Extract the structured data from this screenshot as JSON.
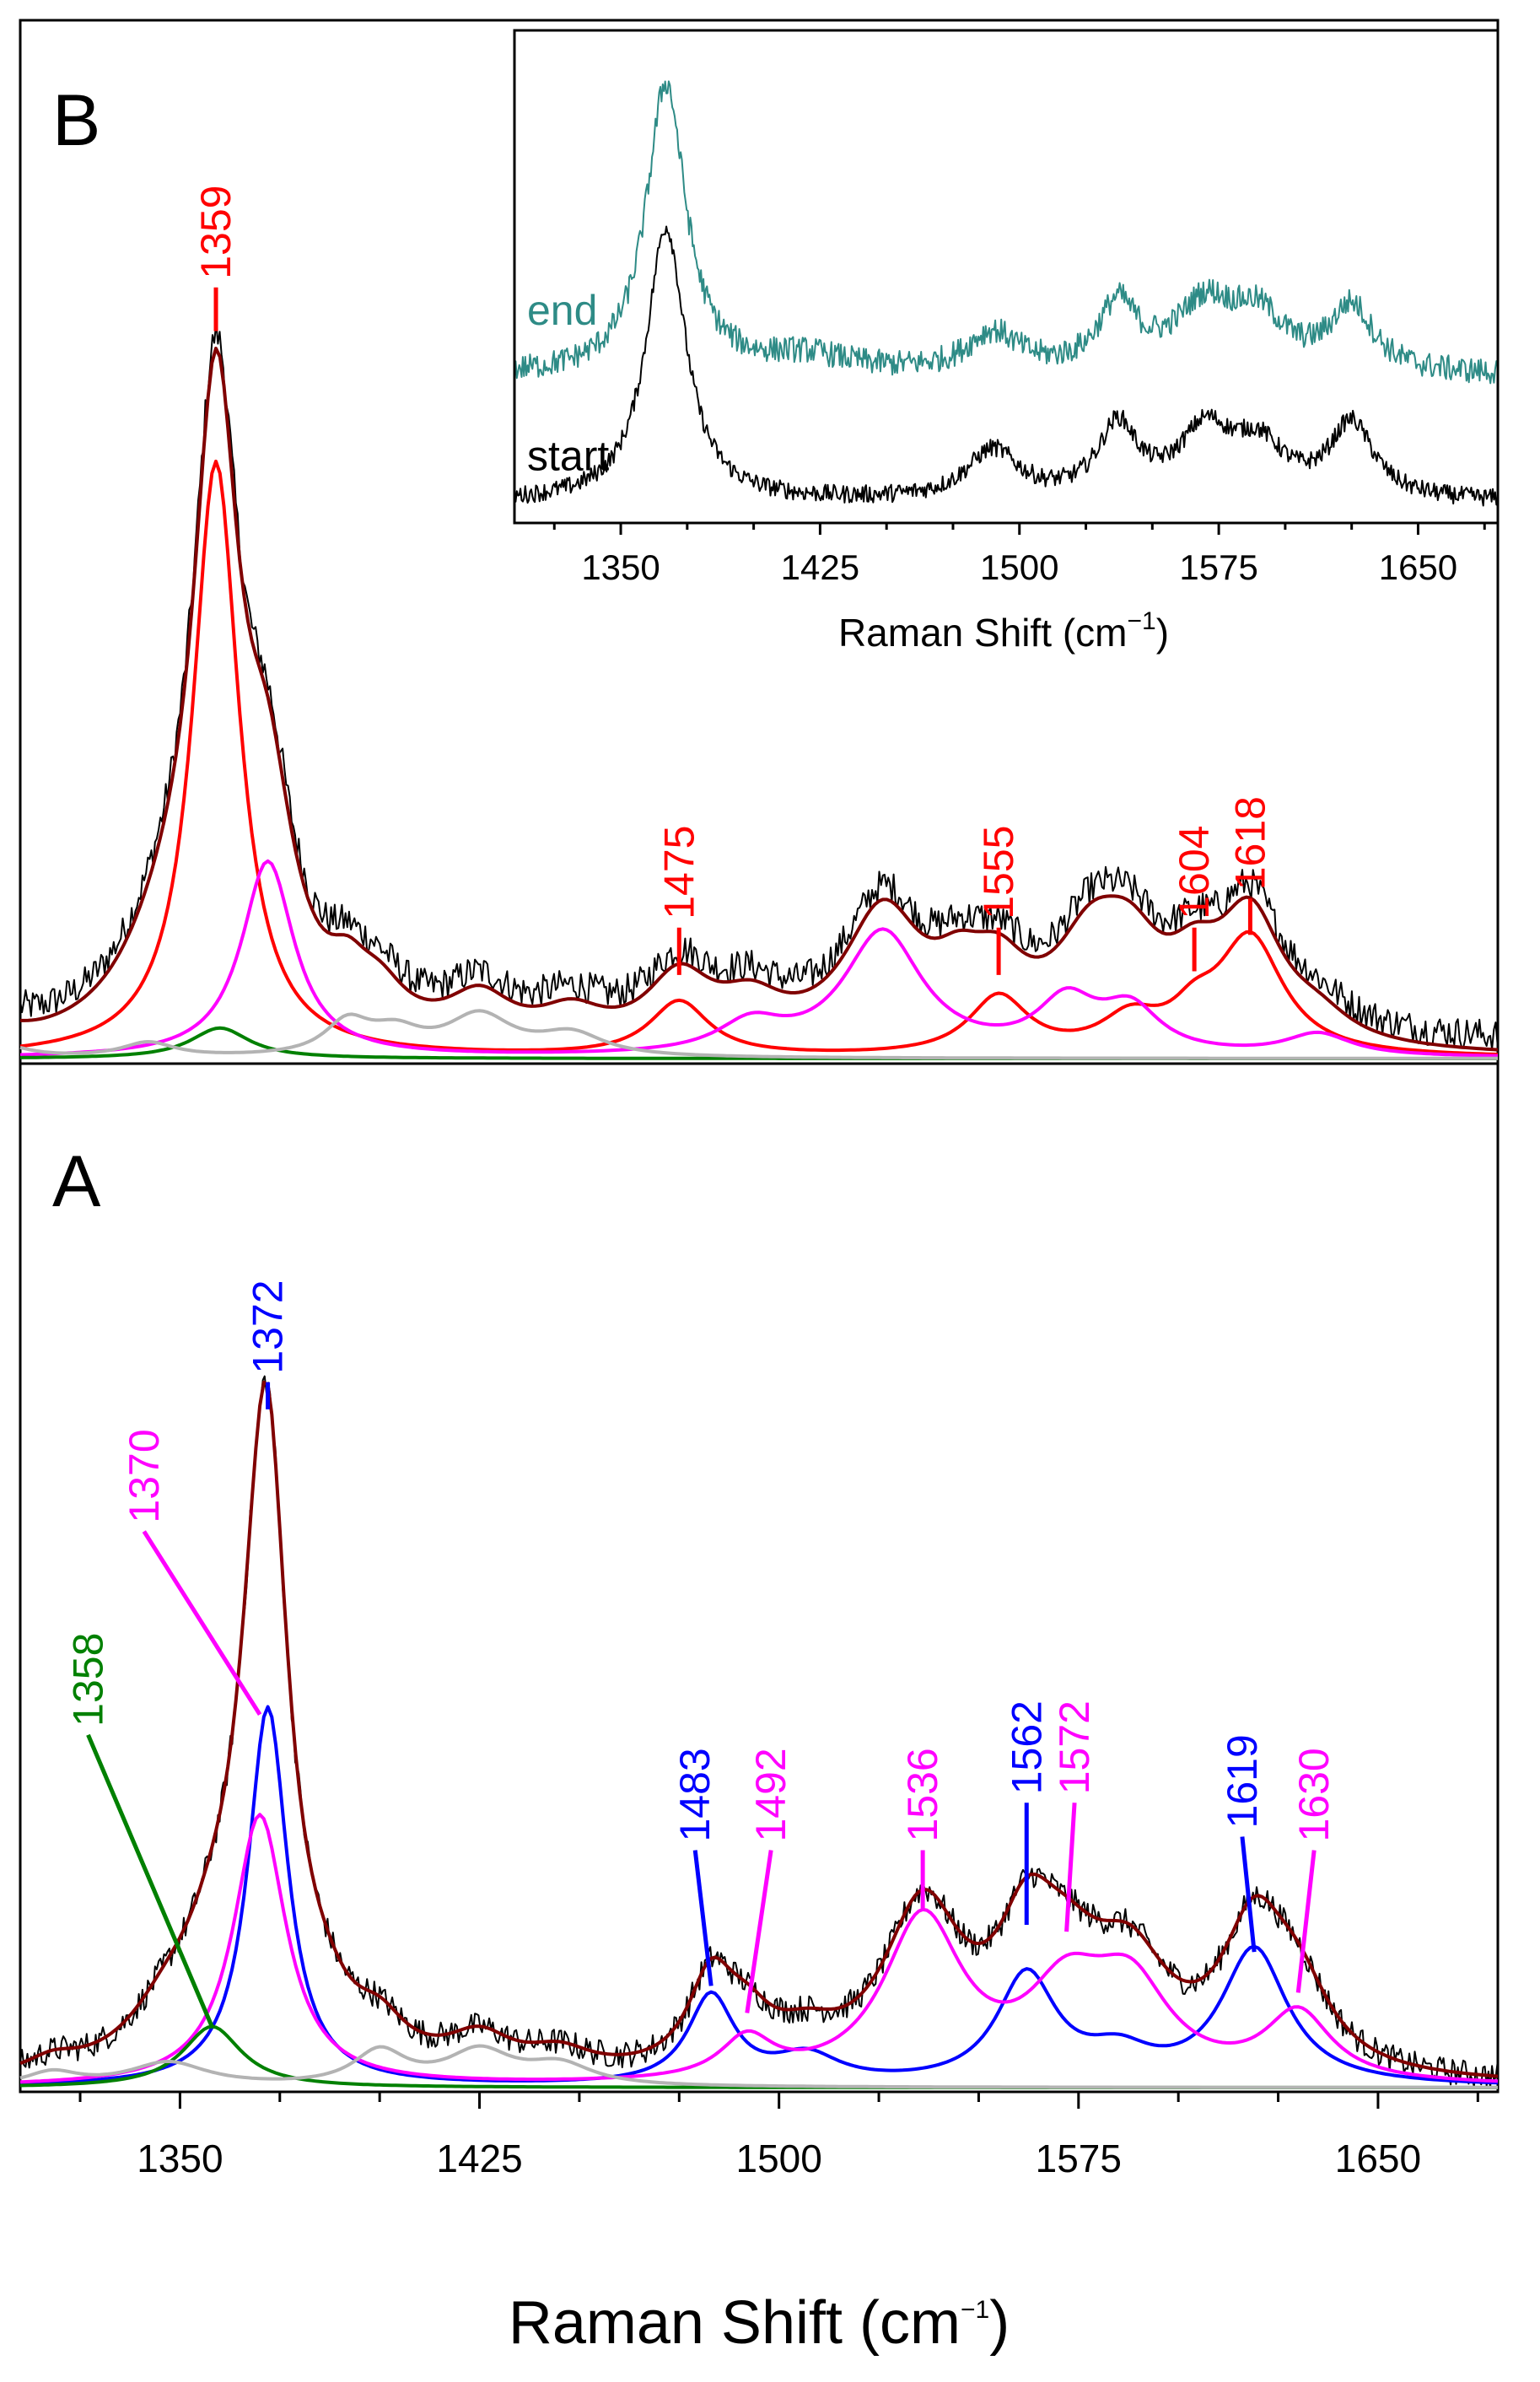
{
  "chart_data": [
    {
      "id": "panel-B",
      "type": "line",
      "panel_label": "B",
      "xlim": [
        1310,
        1680
      ],
      "ylim": [
        0,
        1.2
      ],
      "grid": false,
      "peaks": [
        {
          "x": 1359,
          "label": "1359",
          "color": "#ff0000",
          "tip_y": 1.0,
          "label_y": 1.06
        },
        {
          "x": 1475,
          "label": "1475",
          "color": "#ff0000",
          "tip_y": 0.115,
          "label_y": 0.18
        },
        {
          "x": 1555,
          "label": "1555",
          "color": "#ff0000",
          "tip_y": 0.115,
          "label_y": 0.18
        },
        {
          "x": 1604,
          "label": "1604",
          "color": "#ff0000",
          "tip_y": 0.12,
          "label_y": 0.18
        },
        {
          "x": 1618,
          "label": "1618",
          "color": "#ff0000",
          "tip_y": 0.17,
          "label_y": 0.22
        }
      ],
      "series": [
        {
          "name": "observed",
          "color": "#000000",
          "noise": 0.022,
          "baseline": 0.02,
          "components": [
            [
              1305,
              0.02,
              8
            ],
            [
              1347,
              0.11,
              14
            ],
            [
              1359,
              0.83,
              7
            ],
            [
              1372,
              0.27,
              8
            ],
            [
              1392,
              0.05,
              6
            ],
            [
              1400,
              0.05,
              8
            ],
            [
              1425,
              0.06,
              10
            ],
            [
              1448,
              0.04,
              10
            ],
            [
              1475,
              0.09,
              10
            ],
            [
              1493,
              0.05,
              10
            ],
            [
              1526,
              0.18,
              12
            ],
            [
              1545,
              0.06,
              8
            ],
            [
              1555,
              0.08,
              9
            ],
            [
              1578,
              0.12,
              11
            ],
            [
              1588,
              0.1,
              10
            ],
            [
              1604,
              0.07,
              8
            ],
            [
              1618,
              0.17,
              10
            ],
            [
              1635,
              0.03,
              10
            ]
          ]
        },
        {
          "name": "fit-total",
          "color": "#800000",
          "components": [
            [
              1305,
              0.02,
              8
            ],
            [
              1347,
              0.11,
              14
            ],
            [
              1359,
              0.83,
              7
            ],
            [
              1372,
              0.27,
              8
            ],
            [
              1392,
              0.05,
              6
            ],
            [
              1400,
              0.05,
              8
            ],
            [
              1425,
              0.06,
              10
            ],
            [
              1448,
              0.04,
              10
            ],
            [
              1475,
              0.09,
              10
            ],
            [
              1493,
              0.05,
              10
            ],
            [
              1526,
              0.18,
              12
            ],
            [
              1545,
              0.06,
              8
            ],
            [
              1555,
              0.08,
              9
            ],
            [
              1578,
              0.12,
              11
            ],
            [
              1588,
              0.1,
              10
            ],
            [
              1604,
              0.07,
              8
            ],
            [
              1618,
              0.17,
              10
            ],
            [
              1635,
              0.03,
              10
            ]
          ]
        },
        {
          "name": "red-component",
          "color": "#ff0000",
          "components": [
            [
              1359,
              0.82,
              7
            ],
            [
              1475,
              0.075,
              9
            ],
            [
              1555,
              0.08,
              9
            ],
            [
              1588,
              0.045,
              9
            ],
            [
              1604,
              0.04,
              7
            ],
            [
              1618,
              0.16,
              10
            ]
          ]
        },
        {
          "name": "magenta-component",
          "color": "#ff00ff",
          "components": [
            [
              1372,
              0.27,
              8
            ],
            [
              1493,
              0.04,
              10
            ],
            [
              1526,
              0.17,
              12
            ],
            [
              1572,
              0.07,
              9
            ],
            [
              1588,
              0.06,
              9
            ],
            [
              1635,
              0.03,
              10
            ]
          ]
        },
        {
          "name": "green-component",
          "color": "#008000",
          "components": [
            [
              1360,
              0.042,
              9
            ]
          ]
        },
        {
          "name": "gray-component",
          "color": "#b3b3b3",
          "components": [
            [
              1305,
              0.018,
              8
            ],
            [
              1342,
              0.02,
              8
            ],
            [
              1392,
              0.045,
              7
            ],
            [
              1404,
              0.03,
              8
            ],
            [
              1425,
              0.055,
              10
            ],
            [
              1448,
              0.03,
              10
            ]
          ]
        }
      ]
    },
    {
      "id": "panel-A",
      "type": "line",
      "panel_label": "A",
      "xlim": [
        1310,
        1680
      ],
      "ylim": [
        0,
        1.2
      ],
      "grid": false,
      "xlabel": "Raman Shift (cm",
      "xlabel_sup": "−1",
      "xlabel_end": ")",
      "xticks": [
        "1350",
        "1425",
        "1500",
        "1575",
        "1650"
      ],
      "xtick_values": [
        1350,
        1425,
        1500,
        1575,
        1650
      ],
      "peaks": [
        {
          "x": 1372,
          "label": "1372",
          "color": "#0000ff",
          "tip_y": 1.0,
          "label_y": 1.04,
          "lx": 1372
        },
        {
          "x": 1370,
          "label": "1370",
          "color": "#ff00ff",
          "tip_y": 0.55,
          "label_y": 0.82,
          "lx": 1341
        },
        {
          "x": 1358,
          "label": "1358",
          "color": "#008000",
          "tip_y": 0.09,
          "label_y": 0.52,
          "lx": 1327
        },
        {
          "x": 1483,
          "label": "1483",
          "color": "#0000ff",
          "tip_y": 0.15,
          "label_y": 0.35,
          "lx": 1479
        },
        {
          "x": 1492,
          "label": "1492",
          "color": "#ff00ff",
          "tip_y": 0.11,
          "label_y": 0.35,
          "lx": 1498
        },
        {
          "x": 1536,
          "label": "1536",
          "color": "#ff00ff",
          "tip_y": 0.26,
          "label_y": 0.35,
          "lx": 1536
        },
        {
          "x": 1562,
          "label": "1562",
          "color": "#0000ff",
          "tip_y": 0.24,
          "label_y": 0.42,
          "lx": 1562
        },
        {
          "x": 1572,
          "label": "1572",
          "color": "#ff00ff",
          "tip_y": 0.23,
          "label_y": 0.42,
          "lx": 1574
        },
        {
          "x": 1619,
          "label": "1619",
          "color": "#0000ff",
          "tip_y": 0.2,
          "label_y": 0.37,
          "lx": 1616
        },
        {
          "x": 1630,
          "label": "1630",
          "color": "#ff00ff",
          "tip_y": 0.14,
          "label_y": 0.35,
          "lx": 1634
        }
      ],
      "series": [
        {
          "name": "observed",
          "color": "#000000",
          "noise": 0.02,
          "baseline": 0.0,
          "components": [
            [
              1318,
              0.02,
              8
            ],
            [
              1347,
              0.07,
              12
            ],
            [
              1358,
              0.09,
              9
            ],
            [
              1370,
              0.4,
              8
            ],
            [
              1372,
              0.6,
              6
            ],
            [
              1386,
              0.04,
              8
            ],
            [
              1400,
              0.05,
              8
            ],
            [
              1425,
              0.05,
              10
            ],
            [
              1445,
              0.03,
              10
            ],
            [
              1483,
              0.13,
              7
            ],
            [
              1492,
              0.06,
              8
            ],
            [
              1507,
              0.04,
              10
            ],
            [
              1536,
              0.24,
              12
            ],
            [
              1562,
              0.16,
              9
            ],
            [
              1572,
              0.12,
              12
            ],
            [
              1588,
              0.14,
              12
            ],
            [
              1619,
              0.2,
              10
            ],
            [
              1630,
              0.1,
              10
            ]
          ]
        },
        {
          "name": "fit-total",
          "color": "#800000",
          "components": [
            [
              1318,
              0.02,
              8
            ],
            [
              1347,
              0.07,
              12
            ],
            [
              1358,
              0.09,
              9
            ],
            [
              1370,
              0.4,
              8
            ],
            [
              1372,
              0.6,
              6
            ],
            [
              1386,
              0.04,
              8
            ],
            [
              1400,
              0.05,
              8
            ],
            [
              1425,
              0.05,
              10
            ],
            [
              1445,
              0.03,
              10
            ],
            [
              1483,
              0.13,
              7
            ],
            [
              1492,
              0.06,
              8
            ],
            [
              1507,
              0.04,
              10
            ],
            [
              1536,
              0.24,
              12
            ],
            [
              1562,
              0.16,
              9
            ],
            [
              1572,
              0.12,
              12
            ],
            [
              1588,
              0.14,
              12
            ],
            [
              1619,
              0.2,
              10
            ],
            [
              1630,
              0.1,
              10
            ]
          ]
        },
        {
          "name": "blue-component",
          "color": "#0000ff",
          "components": [
            [
              1372,
              0.56,
              6
            ],
            [
              1483,
              0.13,
              7
            ],
            [
              1507,
              0.04,
              10
            ],
            [
              1562,
              0.16,
              9
            ],
            [
              1585,
              0.04,
              10
            ],
            [
              1619,
              0.2,
              10
            ]
          ]
        },
        {
          "name": "magenta-component",
          "color": "#ff00ff",
          "components": [
            [
              1370,
              0.4,
              8
            ],
            [
              1492,
              0.06,
              8
            ],
            [
              1536,
              0.24,
              12
            ],
            [
              1572,
              0.12,
              12
            ],
            [
              1588,
              0.13,
              12
            ],
            [
              1630,
              0.1,
              10
            ]
          ]
        },
        {
          "name": "green-component",
          "color": "#008000",
          "components": [
            [
              1358,
              0.09,
              9
            ]
          ]
        },
        {
          "name": "gray-component",
          "color": "#b3b3b3",
          "components": [
            [
              1318,
              0.02,
              8
            ],
            [
              1347,
              0.035,
              12
            ],
            [
              1400,
              0.05,
              8
            ],
            [
              1425,
              0.05,
              10
            ],
            [
              1445,
              0.03,
              10
            ]
          ]
        }
      ]
    },
    {
      "id": "inset",
      "type": "line",
      "xlim": [
        1310,
        1680
      ],
      "ylim": [
        0,
        1.5
      ],
      "grid": false,
      "xlabel": "Raman Shift (cm",
      "xlabel_sup": "−1",
      "xlabel_end": ")",
      "xticks": [
        "1350",
        "1425",
        "1500",
        "1575",
        "1650"
      ],
      "xtick_values": [
        1350,
        1425,
        1500,
        1575,
        1650
      ],
      "series": [
        {
          "name": "start",
          "label": "start",
          "color": "#000000",
          "noise": 0.028,
          "baseline": 0.05,
          "components": [
            [
              1367,
              0.85,
              9
            ],
            [
              1490,
              0.15,
              12
            ],
            [
              1537,
              0.22,
              9
            ],
            [
              1570,
              0.2,
              12
            ],
            [
              1590,
              0.15,
              12
            ],
            [
              1625,
              0.23,
              10
            ]
          ]
        },
        {
          "name": "end",
          "label": "end",
          "color": "#2e8b86",
          "noise": 0.04,
          "baseline": 0.44,
          "components": [
            [
              1367,
              0.9,
              9
            ],
            [
              1420,
              0.05,
              20
            ],
            [
              1490,
              0.12,
              12
            ],
            [
              1537,
              0.2,
              9
            ],
            [
              1570,
              0.2,
              14
            ],
            [
              1590,
              0.15,
              12
            ],
            [
              1625,
              0.2,
              10
            ]
          ]
        }
      ]
    }
  ]
}
